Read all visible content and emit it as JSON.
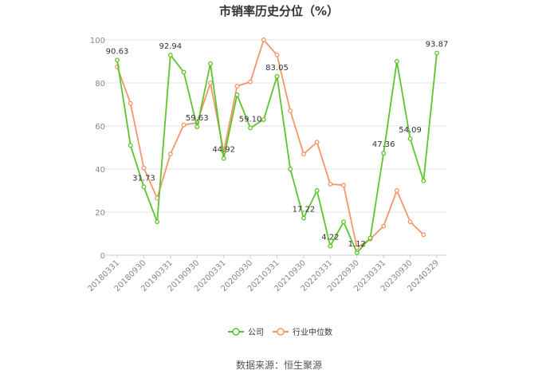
{
  "chart_data": {
    "type": "line",
    "title": "市销率历史分位（%）",
    "source": "数据来源：恒生聚源",
    "ylim": [
      0,
      100
    ],
    "yticks": [
      0,
      20,
      40,
      60,
      80,
      100
    ],
    "grid": true,
    "legend_position": "bottom",
    "x": [
      "20180331",
      "20180630",
      "20180930",
      "20181231",
      "20190331",
      "20190630",
      "20190930",
      "20191231",
      "20200331",
      "20200630",
      "20200930",
      "20201231",
      "20210331",
      "20210630",
      "20210930",
      "20211231",
      "20220331",
      "20220630",
      "20220930",
      "20221231",
      "20230331",
      "20230630",
      "20230930",
      "20231231",
      "20240329"
    ],
    "xtick_labels": [
      "20180331",
      "20180930",
      "20190331",
      "20190930",
      "20200331",
      "20200930",
      "20210331",
      "20210930",
      "20220331",
      "20220930",
      "20230331",
      "20230930",
      "20240329"
    ],
    "series": [
      {
        "name": "公司",
        "color": "#5cc42c",
        "values": [
          90.63,
          51,
          31.73,
          15.5,
          92.94,
          85,
          59.63,
          89,
          44.92,
          74.5,
          59.1,
          63,
          83.05,
          40,
          17.22,
          30,
          4.22,
          15.5,
          1.12,
          8,
          47.36,
          90,
          54.09,
          34.5,
          93.87
        ]
      },
      {
        "name": "行业中位数",
        "color": "#f4956a",
        "values": [
          87.5,
          70.5,
          40.5,
          26.5,
          47,
          60.5,
          61.5,
          80,
          48,
          78.5,
          80.5,
          100,
          93,
          67,
          47,
          52.5,
          33,
          32.5,
          3.5,
          7.5,
          13.5,
          30,
          15.5,
          9.5,
          null
        ]
      }
    ],
    "data_labels": [
      {
        "series": 0,
        "index": 0,
        "text": "90.63"
      },
      {
        "series": 0,
        "index": 2,
        "text": "31.73"
      },
      {
        "series": 0,
        "index": 4,
        "text": "92.94"
      },
      {
        "series": 0,
        "index": 6,
        "text": "59.63"
      },
      {
        "series": 0,
        "index": 8,
        "text": "44.92"
      },
      {
        "series": 0,
        "index": 10,
        "text": "59.10"
      },
      {
        "series": 0,
        "index": 12,
        "text": "83.05"
      },
      {
        "series": 0,
        "index": 14,
        "text": "17.22"
      },
      {
        "series": 0,
        "index": 16,
        "text": "4.22"
      },
      {
        "series": 0,
        "index": 18,
        "text": "1.12"
      },
      {
        "series": 0,
        "index": 20,
        "text": "47.36"
      },
      {
        "series": 0,
        "index": 22,
        "text": "54.09"
      },
      {
        "series": 0,
        "index": 24,
        "text": "93.87"
      }
    ]
  }
}
